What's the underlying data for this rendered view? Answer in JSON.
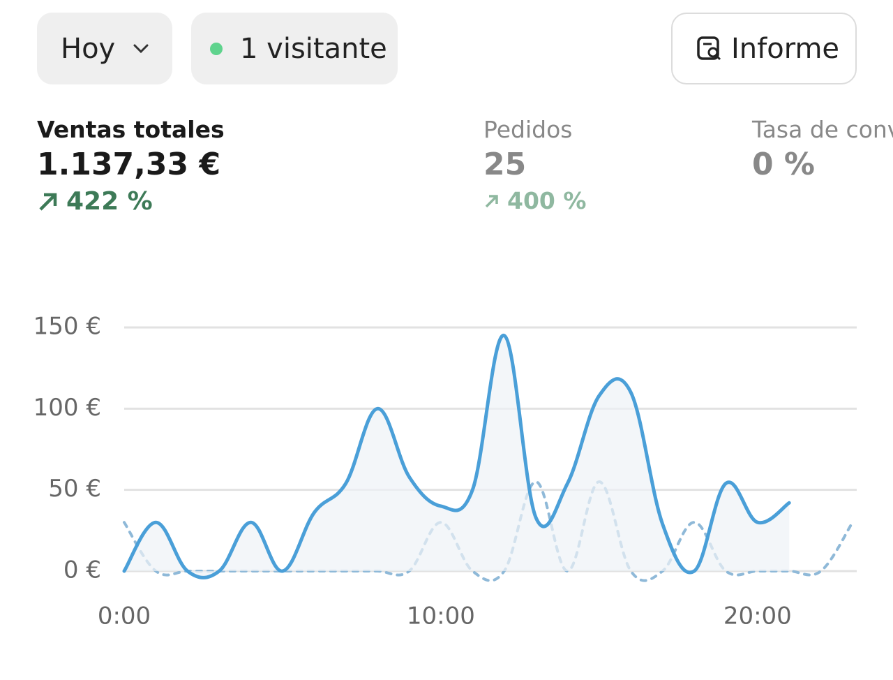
{
  "toolbar": {
    "period": "Hoy",
    "visitors": "1 visitante",
    "report": "Informe"
  },
  "metrics": [
    {
      "label": "Ventas totales",
      "value": "1.137,33 €",
      "change": "422 %"
    },
    {
      "label": "Pedidos",
      "value": "25",
      "change": "400 %"
    },
    {
      "label": "Tasa de conversión",
      "value": "0 %"
    }
  ],
  "chart_data": {
    "type": "line",
    "x": [
      0,
      1,
      2,
      3,
      4,
      5,
      6,
      7,
      8,
      9,
      10,
      11,
      12,
      13,
      14,
      15,
      16,
      17,
      18,
      19,
      20,
      21,
      22,
      23
    ],
    "series": [
      {
        "color": "#4a9fd8",
        "style": "solid",
        "area": true,
        "values": [
          0,
          30,
          0,
          0,
          30,
          0,
          36,
          54,
          100,
          58,
          40,
          50,
          145,
          33,
          54,
          108,
          110,
          29,
          0,
          54,
          30,
          42,
          null,
          null
        ]
      },
      {
        "color": "#8fb9d8",
        "style": "dashed",
        "values": [
          30,
          0,
          0,
          0,
          0,
          0,
          0,
          0,
          0,
          0,
          30,
          0,
          0,
          55,
          0,
          55,
          0,
          0,
          30,
          0,
          0,
          0,
          0,
          30
        ]
      }
    ],
    "xlim": [
      0,
      23
    ],
    "xticks": [
      {
        "value": 0,
        "label": "0:00"
      },
      {
        "value": 10,
        "label": "10:00"
      },
      {
        "value": 20,
        "label": "20:00"
      }
    ],
    "ylim": [
      0,
      150
    ],
    "yticks": [
      {
        "value": 0,
        "label": "0 €"
      },
      {
        "value": 50,
        "label": "50 €"
      },
      {
        "value": 100,
        "label": "100 €"
      },
      {
        "value": 150,
        "label": "150 €"
      }
    ],
    "grid": true
  }
}
